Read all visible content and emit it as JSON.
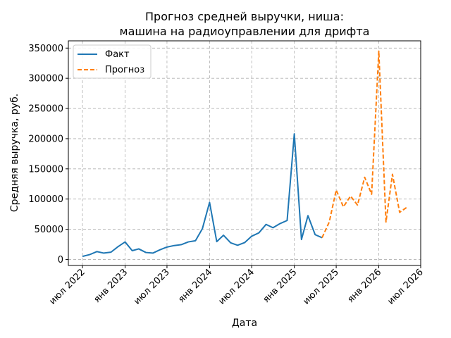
{
  "chart_data": {
    "type": "line",
    "title_lines": [
      "Прогноз средней выручки, ниша:",
      "машина на радиоуправлении для дрифта"
    ],
    "xlabel": "Дата",
    "ylabel": "Средняя выручка, руб.",
    "ylim": [
      -10000,
      362000
    ],
    "y_ticks": [
      0,
      50000,
      100000,
      150000,
      200000,
      250000,
      300000,
      350000
    ],
    "x_range": [
      "2022-05-01",
      "2026-07-01"
    ],
    "x_ticks": [
      {
        "date": "2022-07-01",
        "label": "июл 2022"
      },
      {
        "date": "2023-01-01",
        "label": "янв 2023"
      },
      {
        "date": "2023-07-01",
        "label": "июл 2023"
      },
      {
        "date": "2024-01-01",
        "label": "янв 2024"
      },
      {
        "date": "2024-07-01",
        "label": "июл 2024"
      },
      {
        "date": "2025-01-01",
        "label": "янв 2025"
      },
      {
        "date": "2025-07-01",
        "label": "июл 2025"
      },
      {
        "date": "2026-01-01",
        "label": "янв 2026"
      },
      {
        "date": "2026-07-01",
        "label": "июл 2026"
      }
    ],
    "grid": true,
    "legend_position": "top-left",
    "series": [
      {
        "name": "Факт",
        "color": "#1f77b4",
        "style": "solid",
        "x": [
          "2022-07",
          "2022-08",
          "2022-09",
          "2022-10",
          "2022-11",
          "2022-12",
          "2023-01",
          "2023-02",
          "2023-03",
          "2023-04",
          "2023-05",
          "2023-06",
          "2023-07",
          "2023-08",
          "2023-09",
          "2023-10",
          "2023-11",
          "2023-12",
          "2024-01",
          "2024-02",
          "2024-03",
          "2024-04",
          "2024-05",
          "2024-06",
          "2024-07",
          "2024-08",
          "2024-09",
          "2024-10",
          "2024-11",
          "2024-12",
          "2025-01",
          "2025-02",
          "2025-03",
          "2025-04",
          "2025-05"
        ],
        "values": [
          5000,
          8000,
          13000,
          10500,
          12000,
          21000,
          29000,
          14500,
          17500,
          11500,
          10500,
          16000,
          20500,
          23000,
          24500,
          29000,
          31000,
          51000,
          94500,
          29500,
          40000,
          27500,
          23500,
          28000,
          38500,
          44000,
          58000,
          52500,
          59500,
          64500,
          208000,
          33000,
          72500,
          41000,
          36000
        ]
      },
      {
        "name": "Прогноз",
        "color": "#ff7f0e",
        "style": "dashed",
        "x": [
          "2025-05",
          "2025-06",
          "2025-07",
          "2025-08",
          "2025-09",
          "2025-10",
          "2025-11",
          "2025-12",
          "2026-01",
          "2026-02",
          "2026-03",
          "2026-04",
          "2026-05"
        ],
        "values": [
          36000,
          62000,
          115000,
          87000,
          105000,
          90000,
          136000,
          108000,
          345000,
          62000,
          141000,
          78000,
          86000
        ]
      }
    ]
  }
}
